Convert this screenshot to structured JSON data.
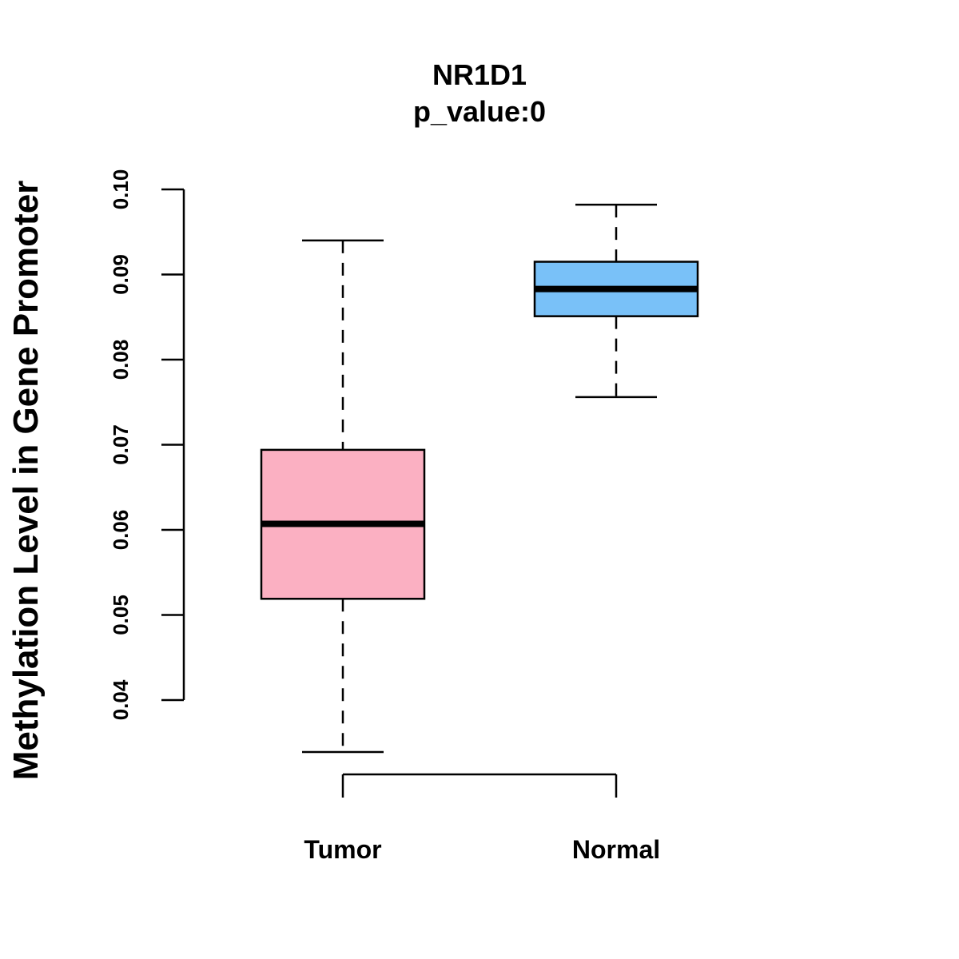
{
  "chart_data": {
    "type": "boxplot",
    "title": "NR1D1",
    "subtitle": "p_value:0",
    "xlabel": "",
    "ylabel": "Methylation Level in Gene Promoter",
    "ylim": [
      0.04,
      0.1
    ],
    "yticks": [
      "0.04",
      "0.05",
      "0.06",
      "0.07",
      "0.08",
      "0.09",
      "0.10"
    ],
    "categories": [
      "Tumor",
      "Normal"
    ],
    "series": [
      {
        "name": "Tumor",
        "whisker_low": 0.0339,
        "q1": 0.0519,
        "median": 0.0607,
        "q3": 0.0694,
        "whisker_high": 0.094,
        "color": "#FBB0C2"
      },
      {
        "name": "Normal",
        "whisker_low": 0.0756,
        "q1": 0.0851,
        "median": 0.0883,
        "q3": 0.0915,
        "whisker_high": 0.0982,
        "color": "#79C1F8"
      }
    ],
    "grid": false,
    "legend": "none"
  }
}
